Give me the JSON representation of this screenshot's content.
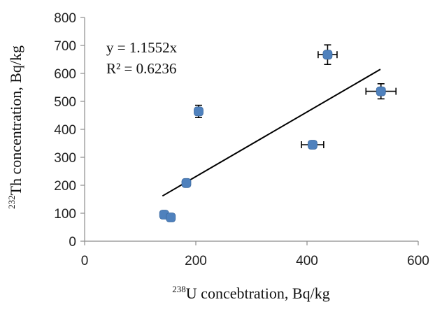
{
  "chart_data": {
    "type": "scatter",
    "xlim": [
      0,
      600
    ],
    "ylim": [
      0,
      800
    ],
    "x_ticks": [
      0,
      200,
      400,
      600
    ],
    "y_ticks": [
      0,
      100,
      200,
      300,
      400,
      500,
      600,
      700,
      800
    ],
    "x_tick_labels": [
      "0",
      "200",
      "400",
      "600"
    ],
    "y_tick_labels": [
      "0",
      "100",
      "200",
      "300",
      "400",
      "500",
      "600",
      "700",
      "800"
    ],
    "xlabel": {
      "superscript": "238",
      "text": "U  concebtration, Bq/kg"
    },
    "ylabel": {
      "superscript": "232",
      "text": "Th concentration, Bq/kg"
    },
    "grid": false,
    "legend": false,
    "marker_color": "#4f81bd",
    "error_bar_color": "#000000",
    "points": [
      {
        "x": 143,
        "y": 95,
        "xerr": 0,
        "yerr": 0
      },
      {
        "x": 155,
        "y": 85,
        "xerr": 0,
        "yerr": 0
      },
      {
        "x": 183,
        "y": 208,
        "xerr": 0,
        "yerr": 0
      },
      {
        "x": 205,
        "y": 464,
        "xerr": 0,
        "yerr": 22
      },
      {
        "x": 410,
        "y": 345,
        "xerr": 20,
        "yerr": 0
      },
      {
        "x": 437,
        "y": 667,
        "xerr": 17,
        "yerr": 35
      },
      {
        "x": 533,
        "y": 536,
        "xerr": 27,
        "yerr": 27
      }
    ],
    "trendline": {
      "type": "linear",
      "slope": 1.1552,
      "intercept": 0,
      "x_range": [
        140,
        532
      ],
      "color": "#000000",
      "equation": "y = 1.1552x",
      "r_squared": "R² = 0.6236"
    }
  }
}
